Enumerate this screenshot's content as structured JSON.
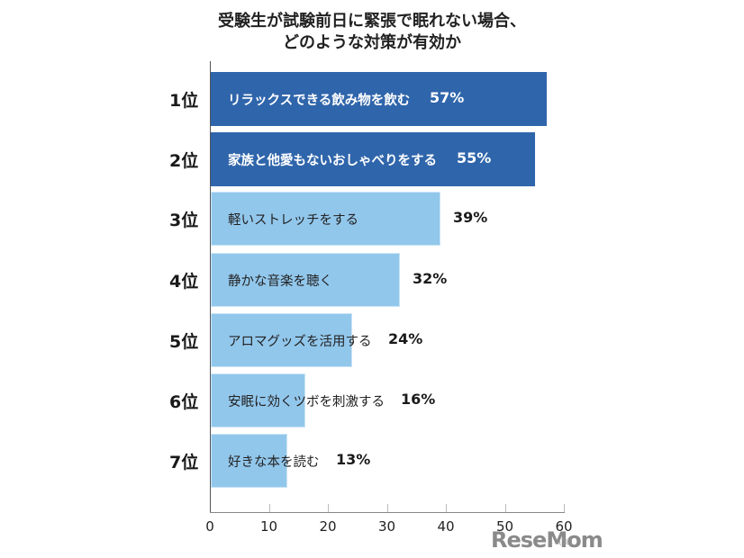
{
  "title": {
    "line1": "受験生が試験前日に緊張で眠れない場合、",
    "line2": "どのような対策が有効か"
  },
  "colors": {
    "top_bars": "#2f65ab",
    "other_bars": "#92c7ec",
    "axis": "#555555"
  },
  "watermark": "ReseMom",
  "unit": "(%)",
  "bars": [
    {
      "rank": "1位",
      "label": "リラックスできる飲み物を飲む",
      "value": 57,
      "value_text": "57%",
      "style": "dark"
    },
    {
      "rank": "2位",
      "label": "家族と他愛もないおしゃべりをする",
      "value": 55,
      "value_text": "55%",
      "style": "dark"
    },
    {
      "rank": "3位",
      "label": "軽いストレッチをする",
      "value": 39,
      "value_text": "39%",
      "style": "light"
    },
    {
      "rank": "4位",
      "label": "静かな音楽を聴く",
      "value": 32,
      "value_text": "32%",
      "style": "light"
    },
    {
      "rank": "5位",
      "label": "アロマグッズを活用する",
      "value": 24,
      "value_text": "24%",
      "style": "light"
    },
    {
      "rank": "6位",
      "label": "安眠に効くツボを刺激する",
      "value": 16,
      "value_text": "16%",
      "style": "light"
    },
    {
      "rank": "7位",
      "label": "好きな本を読む",
      "value": 13,
      "value_text": "13%",
      "style": "light"
    }
  ],
  "x_ticks": [
    "0",
    "10",
    "20",
    "30",
    "40",
    "50",
    "60"
  ],
  "chart_data": {
    "type": "bar",
    "orientation": "horizontal",
    "title": "受験生が試験前日に緊張で眠れない場合、どのような対策が有効か",
    "categories": [
      "リラックスできる飲み物を飲む",
      "家族と他愛もないおしゃべりをする",
      "軽いストレッチをする",
      "静かな音楽を聴く",
      "アロマグッズを活用する",
      "安眠に効くツボを刺激する",
      "好きな本を読む"
    ],
    "ranks": [
      "1位",
      "2位",
      "3位",
      "4位",
      "5位",
      "6位",
      "7位"
    ],
    "values": [
      57,
      55,
      39,
      32,
      24,
      16,
      13
    ],
    "xlabel": "(%)",
    "ylabel": "",
    "xlim": [
      0,
      60
    ],
    "x_ticks": [
      0,
      10,
      20,
      30,
      40,
      50,
      60
    ],
    "grid": false,
    "legend": null,
    "data_labels": [
      "57%",
      "55%",
      "39%",
      "32%",
      "24%",
      "16%",
      "13%"
    ]
  }
}
